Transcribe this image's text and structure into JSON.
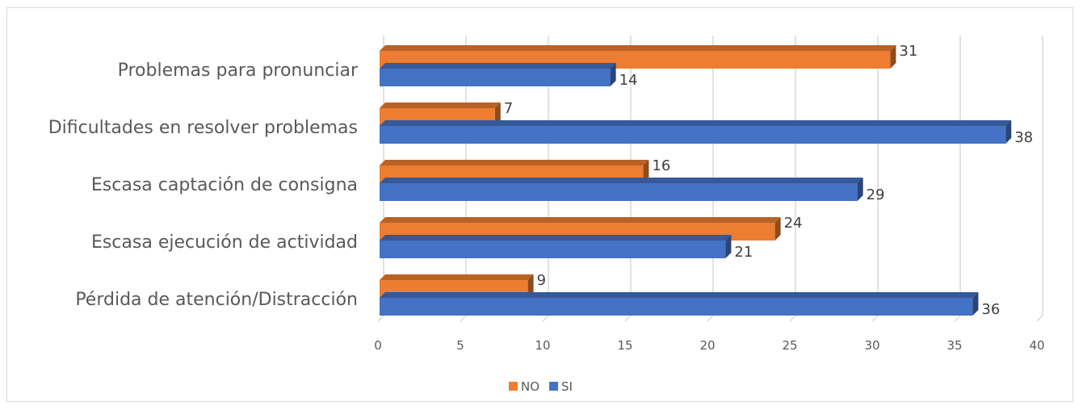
{
  "chart_data": {
    "type": "bar",
    "orientation": "horizontal",
    "style": "3d",
    "categories": [
      "Problemas para pronunciar",
      "Dificultades en resolver problemas",
      "Escasa captación de consigna",
      "Escasa ejecución de actividad",
      "Pérdida de atención/Distracción"
    ],
    "series": [
      {
        "name": "NO",
        "color": "#ED7D31",
        "values": [
          31,
          7,
          16,
          24,
          9
        ]
      },
      {
        "name": "SI",
        "color": "#4472C4",
        "values": [
          14,
          38,
          29,
          21,
          36
        ]
      }
    ],
    "xlim": [
      0,
      40
    ],
    "xticks": [
      "0",
      "5",
      "10",
      "15",
      "20",
      "25",
      "30",
      "35",
      "40"
    ],
    "grid": true,
    "legend_position": "bottom"
  }
}
